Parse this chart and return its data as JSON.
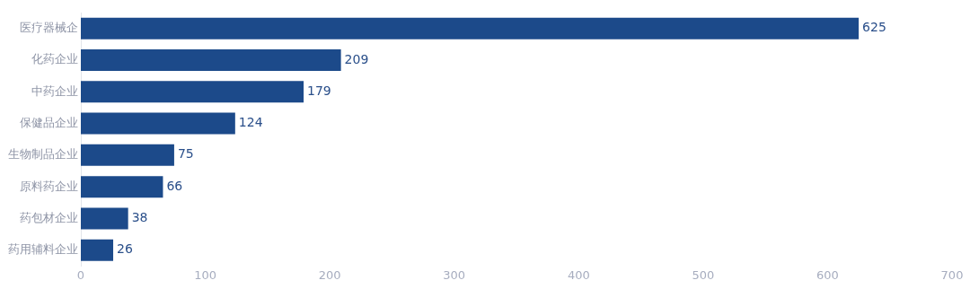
{
  "chart_data": {
    "type": "bar",
    "orientation": "horizontal",
    "categories": [
      "医疗器械企",
      "化药企业",
      "中药企业",
      "保健品企业",
      "生物制品企业",
      "原料药企业",
      "药包材企业",
      "药用辅料企业"
    ],
    "values": [
      625,
      209,
      179,
      124,
      75,
      66,
      38,
      26
    ],
    "color": "#1c4a8a",
    "xlim": [
      0,
      700
    ],
    "xticks": [
      0,
      100,
      200,
      300,
      400,
      500,
      600,
      700
    ],
    "data_labels": true
  }
}
